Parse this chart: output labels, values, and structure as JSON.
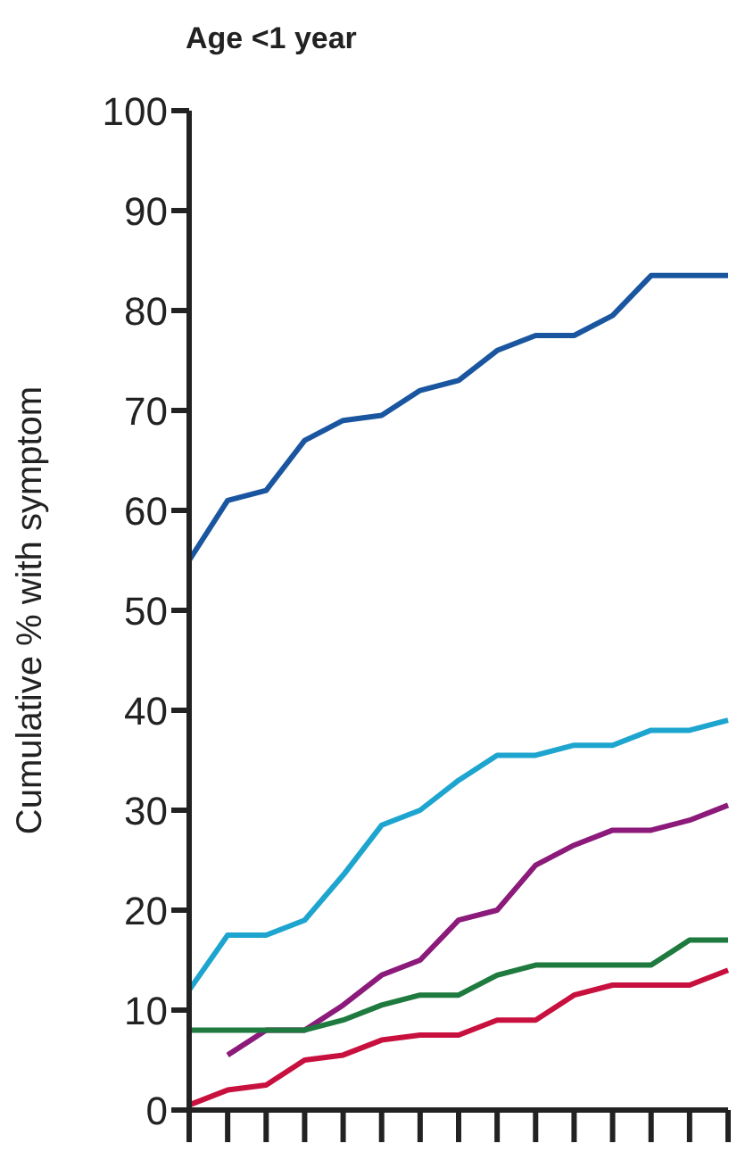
{
  "chart_data": {
    "type": "line",
    "title": "Age <1 year",
    "ylabel": "Cumulative % with symptom",
    "categories": [
      null,
      null,
      null,
      null,
      null,
      null,
      null,
      null,
      null,
      null,
      null,
      null,
      null,
      null,
      null
    ],
    "ylim": [
      0,
      100
    ],
    "yticks": [
      0,
      10,
      20,
      30,
      40,
      50,
      60,
      70,
      80,
      90,
      100
    ],
    "grid": false,
    "legend": false,
    "marker": "none",
    "line_style": "solid",
    "series": [
      {
        "color": "#1a56a0",
        "values": [
          55,
          61,
          62,
          67,
          69,
          69.5,
          72,
          73,
          76,
          77.5,
          77.5,
          79.5,
          83.5,
          83.5,
          83.5
        ]
      },
      {
        "color": "#1ea5cf",
        "values": [
          12,
          17.5,
          17.5,
          19,
          23.5,
          28.5,
          30,
          33,
          35.5,
          35.5,
          36.5,
          36.5,
          38,
          38,
          39
        ]
      },
      {
        "color": "#8b1a7a",
        "values": [
          null,
          5.5,
          8,
          8,
          10.5,
          13.5,
          15,
          19,
          20,
          24.5,
          26.5,
          28,
          28,
          29,
          30.5
        ]
      },
      {
        "color": "#1e7a3e",
        "values": [
          8,
          8,
          8,
          8,
          9,
          10.5,
          11.5,
          11.5,
          13.5,
          14.5,
          14.5,
          14.5,
          14.5,
          17,
          17
        ]
      },
      {
        "color": "#c8103e",
        "values": [
          0.5,
          2,
          2.5,
          5,
          5.5,
          7,
          7.5,
          7.5,
          9,
          9,
          11.5,
          12.5,
          12.5,
          12.5,
          14
        ]
      }
    ]
  }
}
